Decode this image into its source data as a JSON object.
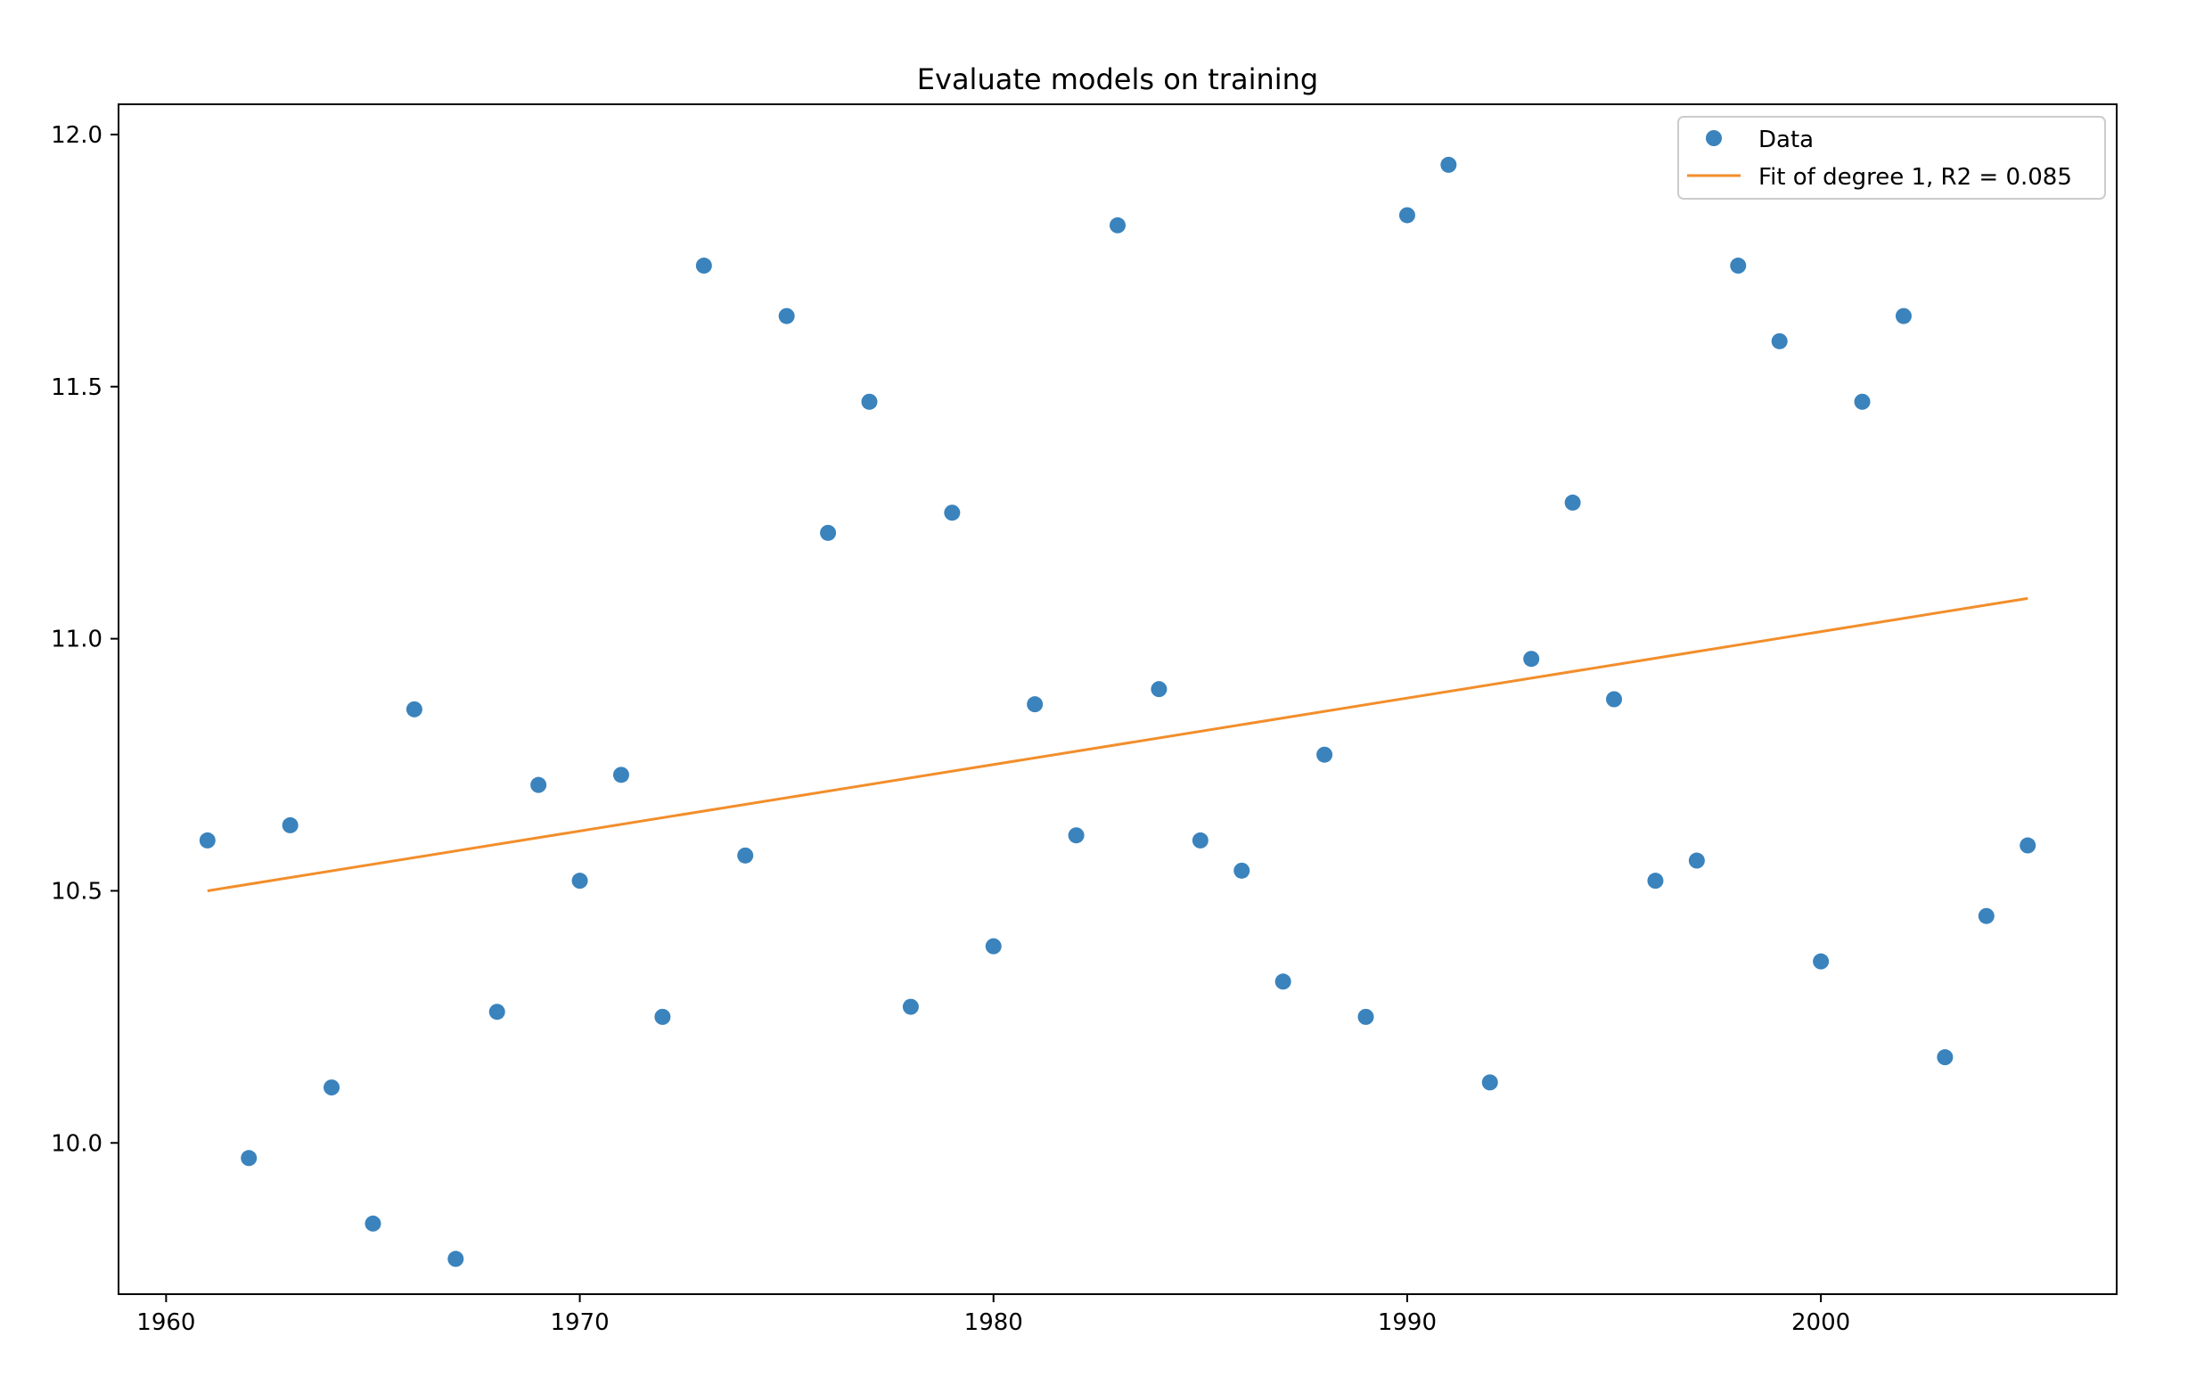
{
  "chart_data": {
    "type": "scatter",
    "title": "Evaluate models on training",
    "xlabel": "",
    "ylabel": "",
    "xlim": [
      1958.85,
      2007.15
    ],
    "ylim": [
      9.7,
      12.06
    ],
    "x_ticks": [
      1960,
      1970,
      1980,
      1990,
      2000
    ],
    "y_ticks": [
      10.0,
      10.5,
      11.0,
      11.5,
      12.0
    ],
    "x_tick_labels": [
      "1960",
      "1970",
      "1980",
      "1990",
      "2000"
    ],
    "y_tick_labels": [
      "10.0",
      "10.5",
      "11.0",
      "11.5",
      "12.0"
    ],
    "grid": false,
    "legend_position": "top-right",
    "series": [
      {
        "name": "Data",
        "kind": "scatter",
        "color": "#3a83bd",
        "x": [
          1961,
          1962,
          1963,
          1964,
          1965,
          1966,
          1967,
          1968,
          1969,
          1970,
          1971,
          1972,
          1973,
          1974,
          1975,
          1976,
          1977,
          1978,
          1979,
          1980,
          1981,
          1982,
          1983,
          1984,
          1985,
          1986,
          1987,
          1988,
          1989,
          1990,
          1991,
          1992,
          1993,
          1994,
          1995,
          1996,
          1997,
          1998,
          1999,
          2000,
          2001,
          2002,
          2003,
          2004,
          2005
        ],
        "y": [
          10.6,
          9.97,
          10.63,
          10.11,
          9.84,
          10.86,
          9.77,
          10.26,
          10.71,
          10.52,
          10.73,
          10.25,
          11.74,
          10.57,
          11.64,
          11.21,
          11.47,
          10.27,
          11.25,
          10.39,
          10.87,
          10.61,
          11.82,
          10.9,
          10.6,
          10.54,
          10.32,
          10.77,
          10.25,
          11.84,
          11.94,
          10.12,
          10.96,
          11.27,
          10.88,
          10.52,
          10.56,
          11.74,
          11.59,
          10.36,
          11.47,
          11.64,
          10.17,
          10.45,
          10.59
        ]
      },
      {
        "name": "Fit of degree 1, R2 = 0.085",
        "kind": "line",
        "color": "#f28e2b",
        "x": [
          1961,
          2005
        ],
        "y": [
          10.5,
          11.08
        ]
      }
    ]
  }
}
